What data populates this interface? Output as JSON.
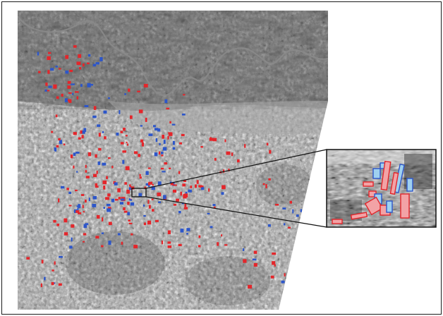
{
  "figure": {
    "description_free": true,
    "colors": {
      "frame": "#1a1a1a",
      "background": "#ffffff",
      "red_marker": "#e3262b",
      "blue_marker": "#2d56c9",
      "inset_red_fill": "#f2a3a6",
      "inset_blue_fill": "#9fd0ef",
      "leader_line": "#111111",
      "river": "#8a8a8a"
    },
    "panels": {
      "main": {
        "kind": "satellite-image",
        "markers": [
          "red",
          "blue"
        ]
      },
      "inset": {
        "kind": "zoomed-satellite-image",
        "markers": [
          "red",
          "blue"
        ]
      }
    }
  }
}
